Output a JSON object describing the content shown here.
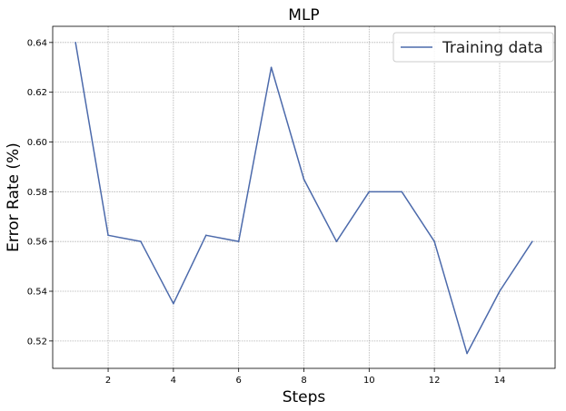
{
  "chart_data": {
    "type": "line",
    "title": "MLP",
    "xlabel": "Steps",
    "ylabel": "Error Rate (%)",
    "xlim": [
      0.3,
      15.7
    ],
    "ylim": [
      0.509,
      0.6465
    ],
    "xticks": [
      2,
      4,
      6,
      8,
      10,
      12,
      14
    ],
    "yticks": [
      0.52,
      0.54,
      0.56,
      0.58,
      0.6,
      0.62,
      0.64
    ],
    "ytick_format": 2,
    "grid": true,
    "legend_position": "top-right",
    "series": [
      {
        "name": "Training data",
        "color": "#4c6aab",
        "x": [
          1,
          2,
          3,
          4,
          5,
          6,
          7,
          8,
          9,
          10,
          11,
          12,
          13,
          14,
          15
        ],
        "y": [
          0.64,
          0.5625,
          0.56,
          0.535,
          0.5625,
          0.56,
          0.63,
          0.585,
          0.56,
          0.58,
          0.58,
          0.56,
          0.515,
          0.54,
          0.56
        ]
      }
    ]
  }
}
